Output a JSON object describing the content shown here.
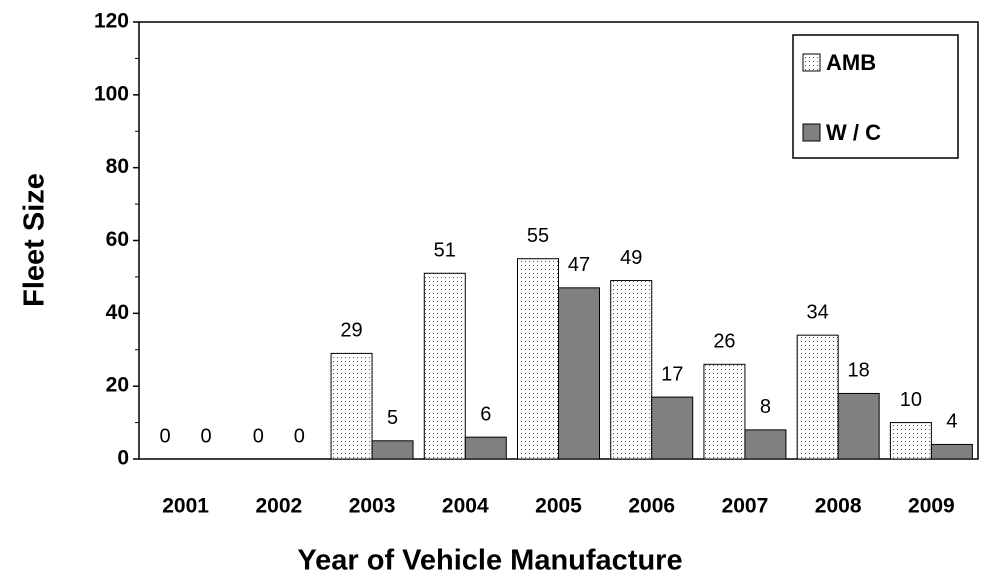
{
  "chart_data": {
    "type": "bar",
    "xlabel": "Year of Vehicle Manufacture",
    "ylabel": "Fleet Size",
    "categories": [
      "2001",
      "2002",
      "2003",
      "2004",
      "2005",
      "2006",
      "2007",
      "2008",
      "2009"
    ],
    "series": [
      {
        "name": "AMB",
        "color": "#ffffff",
        "pattern": "dots",
        "values": [
          0,
          0,
          29,
          51,
          55,
          49,
          26,
          34,
          10
        ]
      },
      {
        "name": "W / C",
        "color": "#808080",
        "values": [
          0,
          0,
          5,
          6,
          47,
          17,
          8,
          18,
          4
        ]
      }
    ],
    "ylim": [
      0,
      120
    ],
    "yticks": [
      0,
      20,
      40,
      60,
      80,
      100,
      120
    ],
    "minor_yticks": [
      10,
      30,
      50,
      70,
      90,
      110
    ],
    "grid": false,
    "legend": "upper right"
  }
}
